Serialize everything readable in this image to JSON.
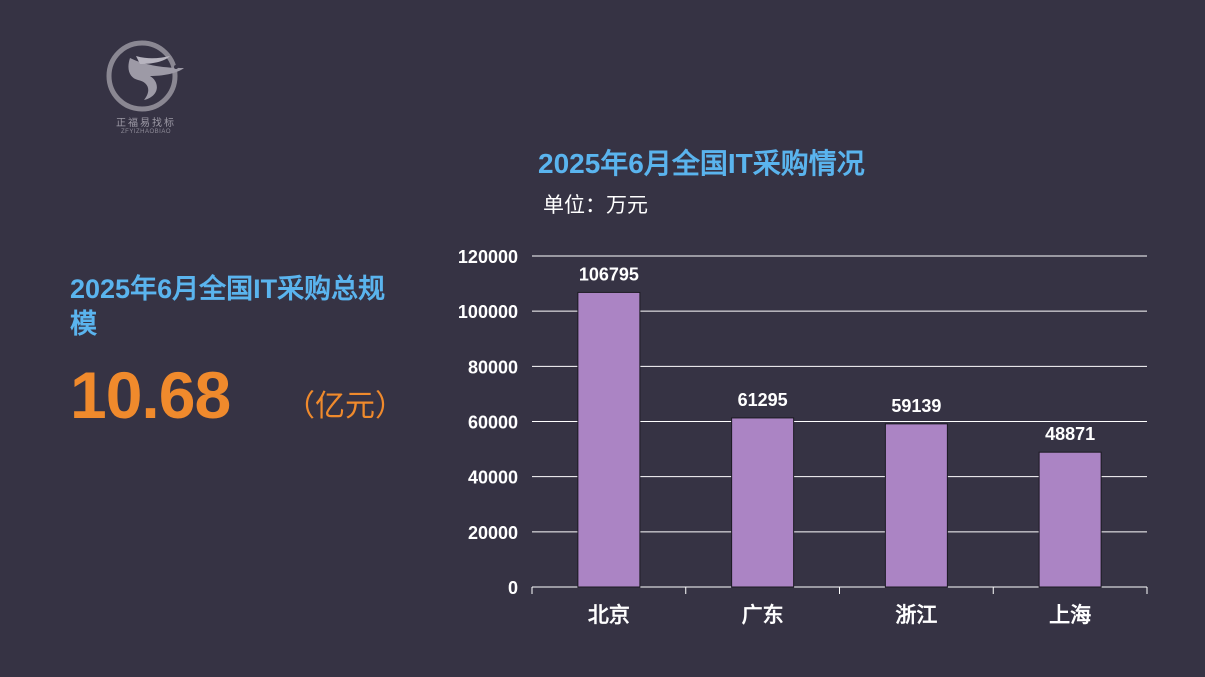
{
  "logo": {
    "name": "正福易找标",
    "sub": "ZFYIZHAOBIAO"
  },
  "summary": {
    "title": "2025年6月全国IT采购总规模",
    "value": "10.68",
    "unit": "（亿元）"
  },
  "colors": {
    "background": "#363344",
    "accent_blue": "#5ab4ee",
    "accent_orange": "#f08a2c",
    "bar": "#ab84c4"
  },
  "chart_data": {
    "type": "bar",
    "title": "2025年6月全国IT采购情况",
    "subtitle": "单位：万元",
    "categories": [
      "北京",
      "广东",
      "浙江",
      "上海"
    ],
    "values": [
      106795,
      61295,
      59139,
      48871
    ],
    "ylim": [
      0,
      120000
    ],
    "yticks": [
      0,
      20000,
      40000,
      60000,
      80000,
      100000,
      120000
    ],
    "grid": true,
    "legend": "none",
    "xlabel": "",
    "ylabel": ""
  }
}
